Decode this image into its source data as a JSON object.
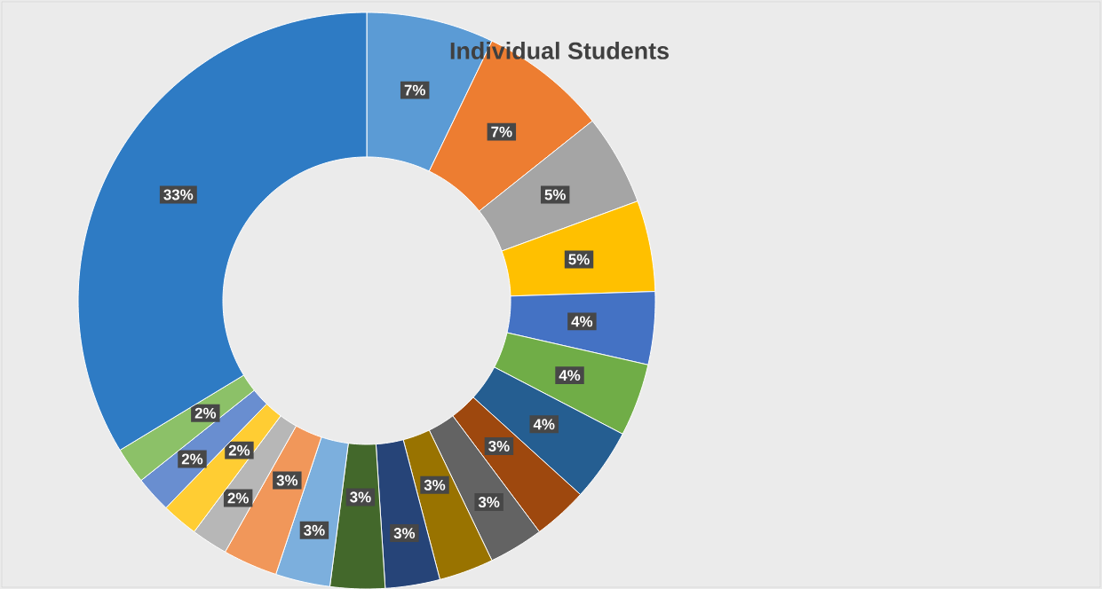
{
  "chart_data": {
    "type": "donut",
    "title": "Individual Students",
    "categories": [
      null,
      null,
      null,
      null,
      null,
      null,
      null,
      null,
      null,
      null,
      null,
      null,
      null,
      null,
      null,
      null,
      null,
      null,
      null
    ],
    "values": [
      7,
      7,
      5,
      5,
      4,
      4,
      4,
      3,
      3,
      3,
      3,
      3,
      3,
      3,
      2,
      2,
      2,
      2,
      33
    ],
    "value_labels": [
      "7%",
      "7%",
      "5%",
      "5%",
      "4%",
      "4%",
      "4%",
      "3%",
      "3%",
      "3%",
      "3%",
      "3%",
      "3%",
      "3%",
      "2%",
      "2%",
      "2%",
      "2%",
      "33%"
    ],
    "colors": [
      "#5b9bd5",
      "#ed7d31",
      "#a5a5a5",
      "#ffc000",
      "#4472c4",
      "#70ad47",
      "#255e91",
      "#9e480e",
      "#636363",
      "#997300",
      "#264478",
      "#43682b",
      "#7cafdd",
      "#f1975a",
      "#b7b7b7",
      "#ffcd33",
      "#698ed0",
      "#8cc168",
      "#2e7bc4"
    ]
  }
}
